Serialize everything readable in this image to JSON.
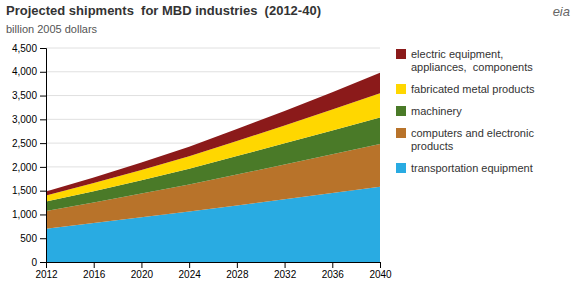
{
  "chart_data": {
    "type": "area",
    "stacked": true,
    "title": "Projected shipments  for MBD industries  (2012-40)",
    "subtitle": "billion 2005 dollars",
    "annotations": [
      "eia"
    ],
    "x": [
      2012,
      2016,
      2020,
      2024,
      2028,
      2032,
      2036,
      2040
    ],
    "series": [
      {
        "name": "transportation equipment",
        "color": "#29ABE2",
        "values": [
          700,
          820,
          940,
          1060,
          1190,
          1320,
          1450,
          1580
        ]
      },
      {
        "name": "computers and electronic\nproducts",
        "color": "#B8732A",
        "values": [
          370,
          430,
          500,
          570,
          650,
          730,
          815,
          900
        ]
      },
      {
        "name": "machinery",
        "color": "#4A7A28",
        "values": [
          200,
          240,
          280,
          330,
          390,
          445,
          500,
          560
        ]
      },
      {
        "name": "fabricated metal products",
        "color": "#FFD700",
        "values": [
          130,
          170,
          215,
          265,
          315,
          375,
          440,
          510
        ]
      },
      {
        "name": "electric equipment,\nappliances,  components",
        "color": "#8B1A1A",
        "values": [
          80,
          115,
          155,
          200,
          250,
          305,
          365,
          430
        ]
      }
    ],
    "xlim": [
      2012,
      2040
    ],
    "xticks": [
      2012,
      2016,
      2020,
      2024,
      2028,
      2032,
      2036,
      2040
    ],
    "ylim": [
      0,
      4500
    ],
    "yticks": [
      0,
      500,
      {
        "value": 1000,
        "label": "1,000"
      },
      {
        "value": 1500,
        "label": "1,500"
      },
      {
        "value": 2000,
        "label": "2,000"
      },
      {
        "value": 2500,
        "label": "2,500"
      },
      {
        "value": 3000,
        "label": "3,000"
      },
      {
        "value": 3500,
        "label": "3,500"
      },
      {
        "value": 4000,
        "label": "4,000"
      },
      {
        "value": 4500,
        "label": "4,500"
      }
    ],
    "grid": true,
    "legend": "right"
  }
}
